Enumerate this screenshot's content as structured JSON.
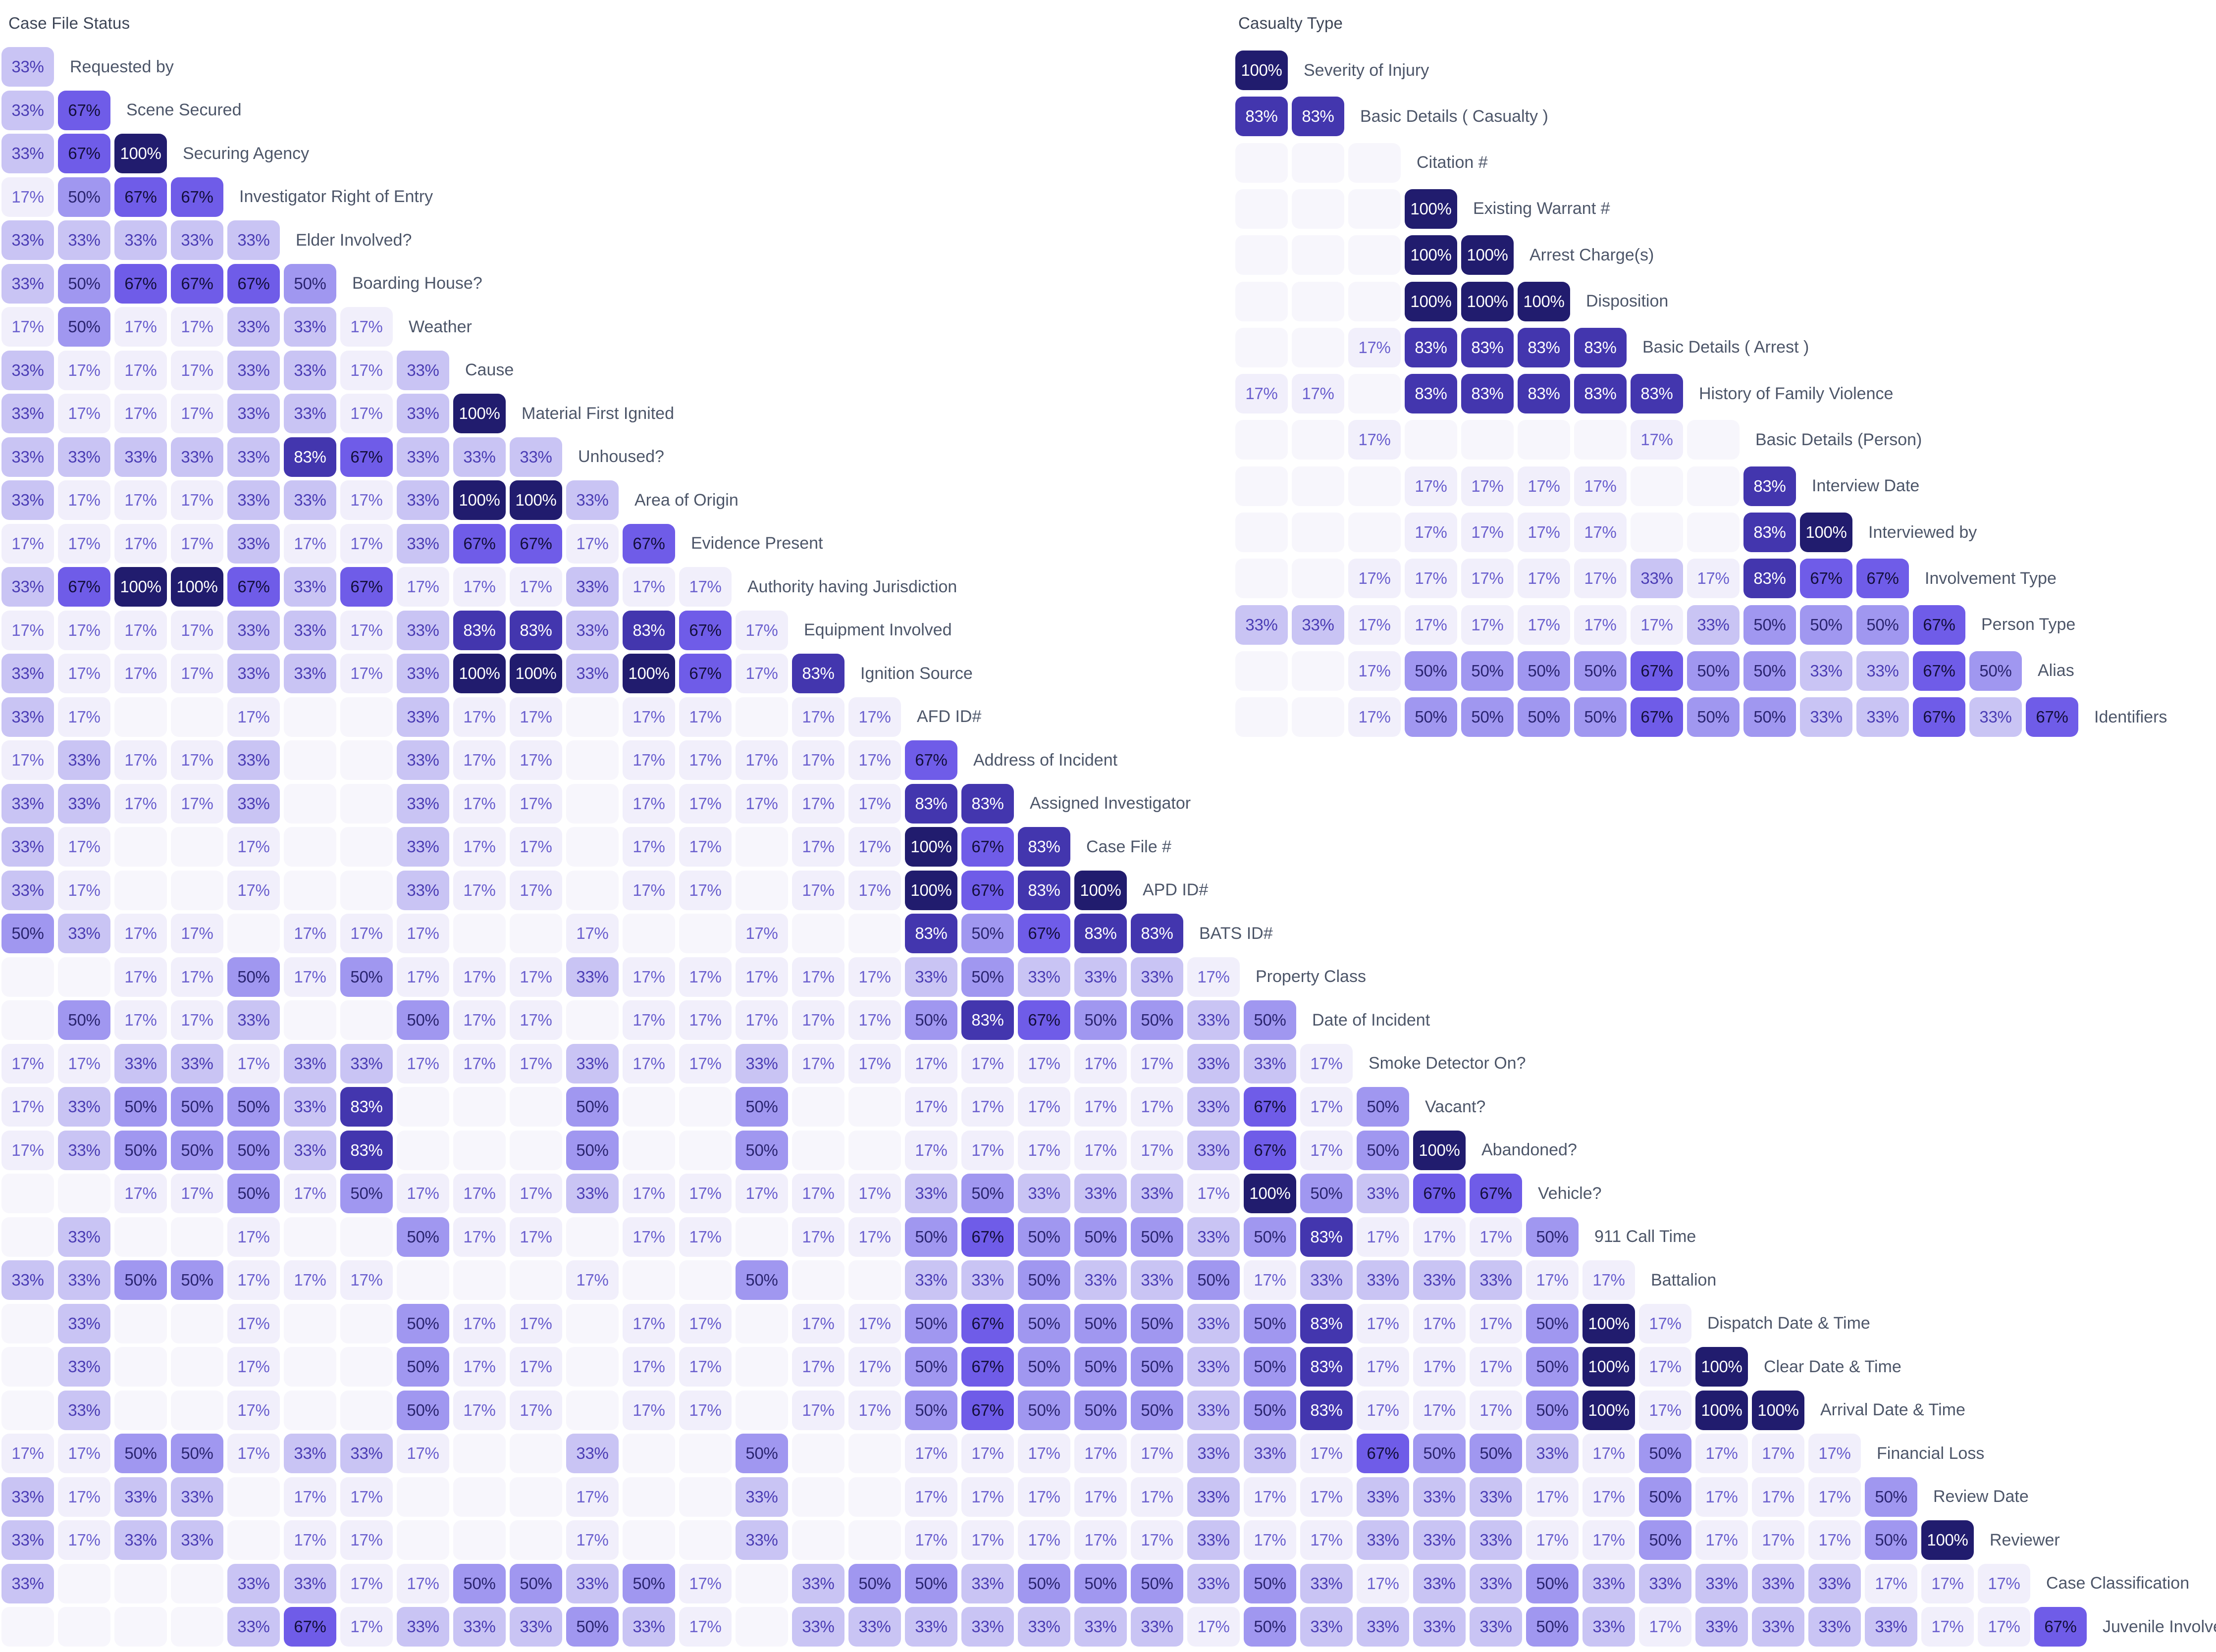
{
  "page": {
    "background": "#ffffff",
    "unit": "%",
    "value_scale": [
      17,
      33,
      50,
      67,
      83,
      100
    ],
    "title_color": "#3d4556",
    "label_color": "#4d5669"
  },
  "value_colors": {
    "0": {
      "bg": "#f7f6fc",
      "text": "#6a60cb"
    },
    "17": {
      "bg": "#f1effb",
      "text": "#6a5fce"
    },
    "33": {
      "bg": "#c9c4f4",
      "text": "#4a3cb4"
    },
    "50": {
      "bg": "#a097f0",
      "text": "#2a2470"
    },
    "67": {
      "bg": "#6f5ce8",
      "text": "#120e3a"
    },
    "83": {
      "bg": "#4336ae",
      "text": "#ffffff"
    },
    "100": {
      "bg": "#211c6e",
      "text": "#ffffff"
    }
  },
  "chart_data": [
    {
      "type": "heatmap",
      "id": "case-file-status",
      "title": "Case File Status",
      "unit": "%",
      "layout_hint": "lower-triangular co-occurrence matrix, blanks are empty cells",
      "rows": [
        {
          "label": "Requested by",
          "values": [
            33
          ]
        },
        {
          "label": "Scene Secured",
          "values": [
            33,
            67
          ]
        },
        {
          "label": "Securing Agency",
          "values": [
            33,
            67,
            100
          ]
        },
        {
          "label": "Investigator Right of Entry",
          "values": [
            17,
            50,
            67,
            67
          ]
        },
        {
          "label": "Elder Involved?",
          "values": [
            33,
            33,
            33,
            33,
            33
          ]
        },
        {
          "label": "Boarding House?",
          "values": [
            33,
            50,
            67,
            67,
            67,
            50
          ]
        },
        {
          "label": "Weather",
          "values": [
            17,
            50,
            17,
            17,
            33,
            33,
            17
          ]
        },
        {
          "label": "Cause",
          "values": [
            33,
            17,
            17,
            17,
            33,
            33,
            17,
            33
          ]
        },
        {
          "label": "Material First Ignited",
          "values": [
            33,
            17,
            17,
            17,
            33,
            33,
            17,
            33,
            100
          ]
        },
        {
          "label": "Unhoused?",
          "values": [
            33,
            33,
            33,
            33,
            33,
            83,
            67,
            33,
            33,
            33
          ]
        },
        {
          "label": "Area of Origin",
          "values": [
            33,
            17,
            17,
            17,
            33,
            33,
            17,
            33,
            100,
            100,
            33
          ]
        },
        {
          "label": "Evidence Present",
          "values": [
            17,
            17,
            17,
            17,
            33,
            17,
            17,
            33,
            67,
            67,
            17,
            67
          ]
        },
        {
          "label": "Authority having Jurisdiction",
          "values": [
            33,
            67,
            100,
            100,
            67,
            33,
            67,
            17,
            17,
            17,
            33,
            17,
            17
          ]
        },
        {
          "label": "Equipment Involved",
          "values": [
            17,
            17,
            17,
            17,
            33,
            33,
            17,
            33,
            83,
            83,
            33,
            83,
            67,
            17
          ]
        },
        {
          "label": "Ignition Source",
          "values": [
            33,
            17,
            17,
            17,
            33,
            33,
            17,
            33,
            100,
            100,
            33,
            100,
            67,
            17,
            83
          ]
        },
        {
          "label": "AFD ID#",
          "values": [
            33,
            17,
            null,
            null,
            17,
            null,
            null,
            33,
            17,
            17,
            null,
            17,
            17,
            null,
            17,
            17
          ]
        },
        {
          "label": "Address of Incident",
          "values": [
            17,
            33,
            17,
            17,
            33,
            null,
            null,
            33,
            17,
            17,
            null,
            17,
            17,
            17,
            17,
            17,
            67
          ]
        },
        {
          "label": "Assigned Investigator",
          "values": [
            33,
            33,
            17,
            17,
            33,
            null,
            null,
            33,
            17,
            17,
            null,
            17,
            17,
            17,
            17,
            17,
            83,
            83
          ]
        },
        {
          "label": "Case File #",
          "values": [
            33,
            17,
            null,
            null,
            17,
            null,
            null,
            33,
            17,
            17,
            null,
            17,
            17,
            null,
            17,
            17,
            100,
            67,
            83
          ]
        },
        {
          "label": "APD ID#",
          "values": [
            33,
            17,
            null,
            null,
            17,
            null,
            null,
            33,
            17,
            17,
            null,
            17,
            17,
            null,
            17,
            17,
            100,
            67,
            83,
            100
          ]
        },
        {
          "label": "BATS ID#",
          "values": [
            50,
            33,
            17,
            17,
            null,
            17,
            17,
            17,
            null,
            null,
            17,
            null,
            null,
            17,
            null,
            null,
            83,
            50,
            67,
            83,
            83
          ]
        },
        {
          "label": "Property Class",
          "values": [
            null,
            null,
            17,
            17,
            50,
            17,
            50,
            17,
            17,
            17,
            33,
            17,
            17,
            17,
            17,
            17,
            33,
            50,
            33,
            33,
            33,
            17
          ]
        },
        {
          "label": "Date of Incident",
          "values": [
            null,
            50,
            17,
            17,
            33,
            null,
            null,
            50,
            17,
            17,
            null,
            17,
            17,
            17,
            17,
            17,
            50,
            83,
            67,
            50,
            50,
            33,
            50
          ]
        },
        {
          "label": "Smoke Detector On?",
          "values": [
            17,
            17,
            33,
            33,
            17,
            33,
            33,
            17,
            17,
            17,
            33,
            17,
            17,
            33,
            17,
            17,
            17,
            17,
            17,
            17,
            17,
            33,
            33,
            17
          ]
        },
        {
          "label": "Vacant?",
          "values": [
            17,
            33,
            50,
            50,
            50,
            33,
            83,
            null,
            null,
            null,
            50,
            null,
            null,
            50,
            null,
            null,
            17,
            17,
            17,
            17,
            17,
            33,
            67,
            17,
            50
          ]
        },
        {
          "label": "Abandoned?",
          "values": [
            17,
            33,
            50,
            50,
            50,
            33,
            83,
            null,
            null,
            null,
            50,
            null,
            null,
            50,
            null,
            null,
            17,
            17,
            17,
            17,
            17,
            33,
            67,
            17,
            50,
            100
          ]
        },
        {
          "label": "Vehicle?",
          "values": [
            null,
            null,
            17,
            17,
            50,
            17,
            50,
            17,
            17,
            17,
            33,
            17,
            17,
            17,
            17,
            17,
            33,
            50,
            33,
            33,
            33,
            17,
            100,
            50,
            33,
            67,
            67
          ]
        },
        {
          "label": "911 Call Time",
          "values": [
            null,
            33,
            null,
            null,
            17,
            null,
            null,
            50,
            17,
            17,
            null,
            17,
            17,
            null,
            17,
            17,
            50,
            67,
            50,
            50,
            50,
            33,
            50,
            83,
            17,
            17,
            17,
            50
          ]
        },
        {
          "label": "Battalion",
          "values": [
            33,
            33,
            50,
            50,
            17,
            17,
            17,
            null,
            null,
            null,
            17,
            null,
            null,
            50,
            null,
            null,
            33,
            33,
            50,
            33,
            33,
            50,
            17,
            33,
            33,
            33,
            33,
            17,
            17
          ]
        },
        {
          "label": "Dispatch Date & Time",
          "values": [
            null,
            33,
            null,
            null,
            17,
            null,
            null,
            50,
            17,
            17,
            null,
            17,
            17,
            null,
            17,
            17,
            50,
            67,
            50,
            50,
            50,
            33,
            50,
            83,
            17,
            17,
            17,
            50,
            100,
            17
          ]
        },
        {
          "label": "Clear Date & Time",
          "values": [
            null,
            33,
            null,
            null,
            17,
            null,
            null,
            50,
            17,
            17,
            null,
            17,
            17,
            null,
            17,
            17,
            50,
            67,
            50,
            50,
            50,
            33,
            50,
            83,
            17,
            17,
            17,
            50,
            100,
            17,
            100
          ]
        },
        {
          "label": "Arrival Date & Time",
          "values": [
            null,
            33,
            null,
            null,
            17,
            null,
            null,
            50,
            17,
            17,
            null,
            17,
            17,
            null,
            17,
            17,
            50,
            67,
            50,
            50,
            50,
            33,
            50,
            83,
            17,
            17,
            17,
            50,
            100,
            17,
            100,
            100
          ]
        },
        {
          "label": "Financial Loss",
          "values": [
            17,
            17,
            50,
            50,
            17,
            33,
            33,
            17,
            null,
            null,
            33,
            null,
            null,
            50,
            null,
            null,
            17,
            17,
            17,
            17,
            17,
            33,
            33,
            17,
            67,
            50,
            50,
            33,
            17,
            50,
            17,
            17,
            17
          ]
        },
        {
          "label": "Review Date",
          "values": [
            33,
            17,
            33,
            33,
            null,
            17,
            17,
            null,
            null,
            null,
            17,
            null,
            null,
            33,
            null,
            null,
            17,
            17,
            17,
            17,
            17,
            33,
            17,
            17,
            33,
            33,
            33,
            17,
            17,
            50,
            17,
            17,
            17,
            50
          ]
        },
        {
          "label": "Reviewer",
          "values": [
            33,
            17,
            33,
            33,
            null,
            17,
            17,
            null,
            null,
            null,
            17,
            null,
            null,
            33,
            null,
            null,
            17,
            17,
            17,
            17,
            17,
            33,
            17,
            17,
            33,
            33,
            33,
            17,
            17,
            50,
            17,
            17,
            17,
            50,
            100
          ]
        },
        {
          "label": "Case Classification",
          "values": [
            33,
            null,
            null,
            null,
            33,
            33,
            17,
            17,
            50,
            50,
            33,
            50,
            17,
            null,
            33,
            50,
            50,
            33,
            50,
            50,
            50,
            33,
            50,
            33,
            17,
            33,
            33,
            50,
            33,
            33,
            33,
            33,
            33,
            17,
            17,
            17
          ]
        },
        {
          "label": "Juvenile Involved?",
          "values": [
            null,
            null,
            null,
            null,
            33,
            67,
            17,
            33,
            33,
            33,
            50,
            33,
            17,
            null,
            33,
            33,
            33,
            33,
            33,
            33,
            33,
            17,
            50,
            33,
            33,
            33,
            33,
            50,
            33,
            17,
            33,
            33,
            33,
            33,
            17,
            17,
            67
          ]
        }
      ]
    },
    {
      "type": "heatmap",
      "id": "casualty-type",
      "title": "Casualty Type",
      "unit": "%",
      "layout_hint": "lower-triangular co-occurrence matrix, blanks are empty cells",
      "rows": [
        {
          "label": "Severity of Injury",
          "values": [
            100
          ]
        },
        {
          "label": "Basic Details ( Casualty )",
          "values": [
            83,
            83
          ]
        },
        {
          "label": "Citation #",
          "values": [
            null,
            null,
            null
          ]
        },
        {
          "label": "Existing Warrant #",
          "values": [
            null,
            null,
            null,
            100
          ]
        },
        {
          "label": "Arrest Charge(s)",
          "values": [
            null,
            null,
            null,
            100,
            100
          ]
        },
        {
          "label": "Disposition",
          "values": [
            null,
            null,
            null,
            100,
            100,
            100
          ]
        },
        {
          "label": "Basic Details ( Arrest )",
          "values": [
            null,
            null,
            17,
            83,
            83,
            83,
            83
          ]
        },
        {
          "label": "History of Family Violence",
          "values": [
            17,
            17,
            null,
            83,
            83,
            83,
            83,
            83
          ]
        },
        {
          "label": "Basic Details (Person)",
          "values": [
            null,
            null,
            17,
            null,
            null,
            null,
            null,
            17,
            null
          ]
        },
        {
          "label": "Interview Date",
          "values": [
            null,
            null,
            null,
            17,
            17,
            17,
            17,
            null,
            null,
            83
          ]
        },
        {
          "label": "Interviewed by",
          "values": [
            null,
            null,
            null,
            17,
            17,
            17,
            17,
            null,
            null,
            83,
            100
          ]
        },
        {
          "label": "Involvement Type",
          "values": [
            null,
            null,
            17,
            17,
            17,
            17,
            17,
            33,
            17,
            83,
            67,
            67
          ]
        },
        {
          "label": "Person Type",
          "values": [
            33,
            33,
            17,
            17,
            17,
            17,
            17,
            17,
            33,
            50,
            50,
            50,
            67
          ]
        },
        {
          "label": "Alias",
          "values": [
            null,
            null,
            17,
            50,
            50,
            50,
            50,
            67,
            50,
            50,
            33,
            33,
            67,
            50
          ]
        },
        {
          "label": "Identifiers",
          "values": [
            null,
            null,
            17,
            50,
            50,
            50,
            50,
            67,
            50,
            50,
            33,
            33,
            67,
            33,
            67
          ]
        }
      ]
    }
  ]
}
